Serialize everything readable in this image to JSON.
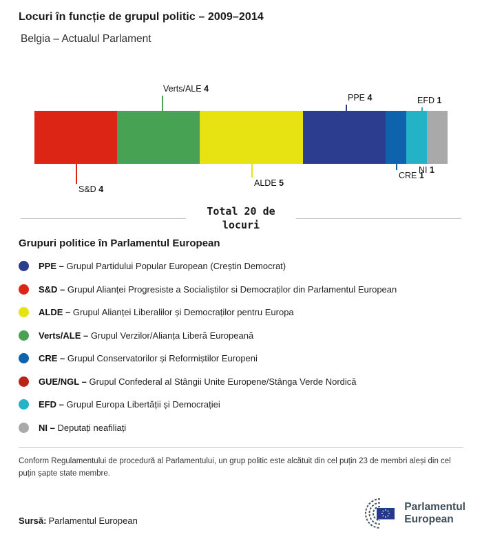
{
  "header": {
    "title": "Locuri în funcție de grupul politic – 2009–2014",
    "subtitle": "Belgia – Actualul Parlament"
  },
  "chart_data": {
    "type": "bar",
    "variant": "horizontal-stacked",
    "title": "Locuri în funcție de grupul politic – 2009–2014",
    "subtitle": "Belgia – Actualul Parlament",
    "total_seats": 20,
    "total_label": "Total 20 de locuri",
    "segments": [
      {
        "group": "S&D",
        "seats": 4,
        "color": "#dd2515",
        "callout": "below"
      },
      {
        "group": "Verts/ALE",
        "seats": 4,
        "color": "#47a253",
        "callout": "above"
      },
      {
        "group": "ALDE",
        "seats": 5,
        "color": "#e7e211",
        "callout": "below"
      },
      {
        "group": "PPE",
        "seats": 4,
        "color": "#2c3c8e",
        "callout": "above"
      },
      {
        "group": "CRE",
        "seats": 1,
        "color": "#0f62ac",
        "callout": "below"
      },
      {
        "group": "EFD",
        "seats": 1,
        "color": "#23b2c6",
        "callout": "above"
      },
      {
        "group": "NI",
        "seats": 1,
        "color": "#a9a9a9",
        "callout": "below"
      }
    ]
  },
  "legend": {
    "heading": "Grupuri politice în Parlamentul European",
    "items": [
      {
        "abbr": "PPE –",
        "name": "Grupul Partidului Popular European (Creștin Democrat)",
        "color": "#2c3c8e"
      },
      {
        "abbr": "S&D –",
        "name": "Grupul Alianței Progresiste a Socialiștilor si Democraților din Parlamentul European",
        "color": "#dd2515"
      },
      {
        "abbr": "ALDE –",
        "name": "Grupul Alianței Liberalilor și Democraților pentru Europa",
        "color": "#e7e211"
      },
      {
        "abbr": "Verts/ALE –",
        "name": "Grupul Verzilor/Alianța Liberă Europeană",
        "color": "#47a253"
      },
      {
        "abbr": "CRE –",
        "name": "Grupul Conservatorilor și Reformiștilor Europeni",
        "color": "#0f62ac"
      },
      {
        "abbr": "GUE/NGL –",
        "name": "Grupul Confederal al Stângii Unite Europene/Stânga Verde Nordică",
        "color": "#ba2318"
      },
      {
        "abbr": "EFD –",
        "name": "Grupul Europa Libertății și Democrației",
        "color": "#23b2c6"
      },
      {
        "abbr": "NI –",
        "name": "Deputați neafiliați",
        "color": "#a9a9a9"
      }
    ]
  },
  "footnote": "Conform Regulamentului de procedură al Parlamentului, un grup politic este alcătuit din cel puțin 23 de membri aleși din cel puțin șapte state membre.",
  "source": {
    "label": "Sursă:",
    "value": "Parlamentul European"
  },
  "logo": {
    "line1": "Parlamentul",
    "line2": "European"
  }
}
